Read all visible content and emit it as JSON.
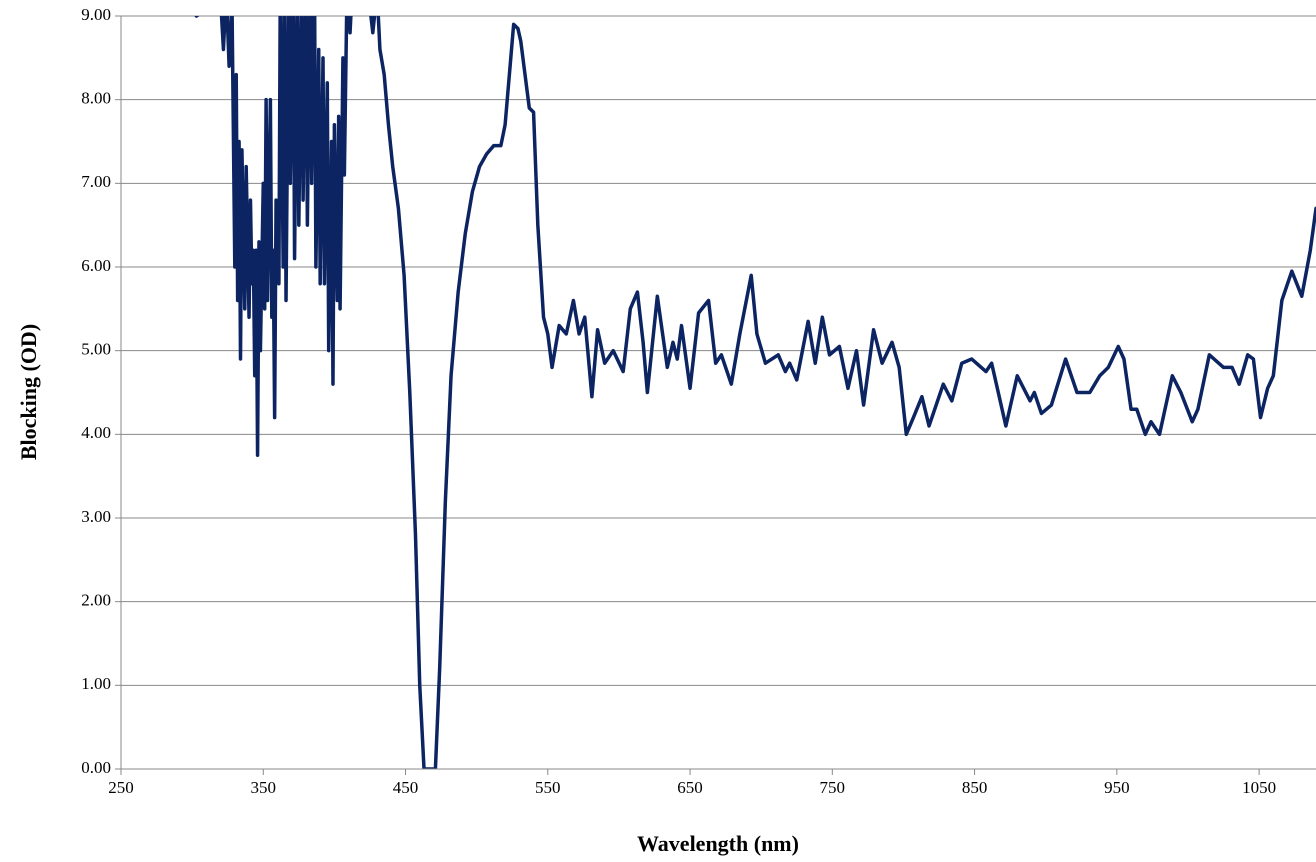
{
  "chart_data": {
    "type": "line",
    "xlabel": "Wavelength (nm)",
    "ylabel": "Blocking (OD)",
    "xlim": [
      250,
      1090
    ],
    "ylim": [
      0,
      9
    ],
    "xticks": [
      250,
      350,
      450,
      550,
      650,
      750,
      850,
      950,
      1050
    ],
    "yticks": [
      {
        "value": 0,
        "label": "0.00"
      },
      {
        "value": 1,
        "label": "1.00"
      },
      {
        "value": 2,
        "label": "2.00"
      },
      {
        "value": 3,
        "label": "3.00"
      },
      {
        "value": 4,
        "label": "4.00"
      },
      {
        "value": 5,
        "label": "5.00"
      },
      {
        "value": 6,
        "label": "6.00"
      },
      {
        "value": 7,
        "label": "7.00"
      },
      {
        "value": 8,
        "label": "8.00"
      },
      {
        "value": 9,
        "label": "9.00"
      }
    ],
    "grid": true,
    "x": [
      303,
      320,
      322,
      324,
      326,
      328,
      330,
      331,
      332,
      333,
      334,
      335,
      337,
      338,
      340,
      341,
      342,
      343,
      344,
      345,
      346,
      347,
      348,
      350,
      351,
      352,
      353,
      355,
      356,
      357,
      358,
      359,
      361,
      362,
      364,
      365,
      366,
      368,
      369,
      371,
      372,
      374,
      375,
      377,
      378,
      380,
      381,
      383,
      384,
      386,
      387,
      389,
      390,
      392,
      393,
      395,
      396,
      398,
      399,
      400,
      402,
      403,
      404,
      406,
      407,
      409,
      411,
      413,
      420,
      425,
      427,
      430,
      432,
      435,
      438,
      441,
      445,
      449,
      453,
      457,
      460,
      463,
      467,
      471,
      474,
      478,
      482,
      487,
      492,
      497,
      502,
      507,
      512,
      517,
      520,
      524,
      526,
      529,
      531,
      534,
      537,
      540,
      543,
      547,
      550,
      553,
      558,
      563,
      568,
      572,
      576,
      581,
      585,
      590,
      596,
      603,
      608,
      613,
      617,
      620,
      627,
      634,
      638,
      641,
      644,
      650,
      656,
      663,
      668,
      672,
      679,
      685,
      693,
      697,
      703,
      712,
      717,
      720,
      725,
      733,
      738,
      743,
      748,
      755,
      761,
      767,
      772,
      779,
      785,
      792,
      797,
      802,
      807,
      813,
      818,
      828,
      834,
      841,
      848,
      858,
      862,
      872,
      880,
      889,
      892,
      897,
      904,
      914,
      922,
      931,
      938,
      944,
      951,
      955,
      960,
      964,
      970,
      974,
      980,
      989,
      995,
      1003,
      1007,
      1015,
      1025,
      1031,
      1036,
      1042,
      1046,
      1051,
      1056,
      1060,
      1066,
      1073,
      1080,
      1086,
      1090
    ],
    "series": [
      {
        "color": "#0c2461",
        "values": [
          9.0,
          9.2,
          8.6,
          9.3,
          8.4,
          9.2,
          6.0,
          8.3,
          5.6,
          7.5,
          4.9,
          7.4,
          5.5,
          7.2,
          5.4,
          6.8,
          5.8,
          6.2,
          4.7,
          6.2,
          3.75,
          6.3,
          5.0,
          7.0,
          5.5,
          8.0,
          5.6,
          8.0,
          5.4,
          6.2,
          4.2,
          6.8,
          5.8,
          9.5,
          6.0,
          9.5,
          5.6,
          9.5,
          7.0,
          9.5,
          6.1,
          9.5,
          6.5,
          9.3,
          6.8,
          9.5,
          6.5,
          9.5,
          7.0,
          9.5,
          6.0,
          8.6,
          5.8,
          8.5,
          5.8,
          8.2,
          5.0,
          7.5,
          4.6,
          7.7,
          5.6,
          7.8,
          5.5,
          8.5,
          7.1,
          9.5,
          8.8,
          9.5,
          9.3,
          9.1,
          8.8,
          9.3,
          8.6,
          8.3,
          7.7,
          7.2,
          6.7,
          5.9,
          4.5,
          2.8,
          1.0,
          0.0,
          0.0,
          0.0,
          1.2,
          3.2,
          4.7,
          5.7,
          6.4,
          6.9,
          7.2,
          7.35,
          7.45,
          7.45,
          7.7,
          8.5,
          8.9,
          8.85,
          8.7,
          8.3,
          7.9,
          7.85,
          6.5,
          5.4,
          5.2,
          4.8,
          5.3,
          5.2,
          5.6,
          5.2,
          5.4,
          4.45,
          5.25,
          4.85,
          5.0,
          4.75,
          5.5,
          5.7,
          5.1,
          4.5,
          5.65,
          4.8,
          5.1,
          4.9,
          5.3,
          4.55,
          5.45,
          5.6,
          4.85,
          4.95,
          4.6,
          5.2,
          5.9,
          5.2,
          4.85,
          4.95,
          4.75,
          4.85,
          4.65,
          5.35,
          4.85,
          5.4,
          4.95,
          5.05,
          4.55,
          5.0,
          4.35,
          5.25,
          4.85,
          5.1,
          4.8,
          4.0,
          4.2,
          4.45,
          4.1,
          4.6,
          4.4,
          4.85,
          4.9,
          4.75,
          4.85,
          4.1,
          4.7,
          4.4,
          4.5,
          4.25,
          4.35,
          4.9,
          4.5,
          4.5,
          4.7,
          4.8,
          5.05,
          4.9,
          4.3,
          4.3,
          4.0,
          4.15,
          4.0,
          4.7,
          4.5,
          4.15,
          4.3,
          4.95,
          4.8,
          4.8,
          4.6,
          4.95,
          4.9,
          4.2,
          4.55,
          4.7,
          5.6,
          5.95,
          5.65,
          6.2,
          6.7
        ]
      }
    ]
  }
}
